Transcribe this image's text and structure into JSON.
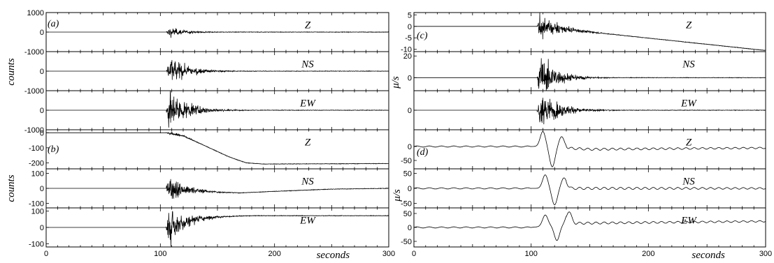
{
  "chart_data": [
    {
      "type": "line",
      "panel": "(a)",
      "ylabel": "counts",
      "x_range": [
        0,
        300
      ],
      "traces": [
        {
          "component": "Z",
          "ylim": [
            -1000,
            1000
          ],
          "ticks": [
            "1000",
            "0",
            "-1000"
          ],
          "onset": 105,
          "peak_amp": 220,
          "decay": 14,
          "trend": []
        },
        {
          "component": "NS",
          "ylim": [
            -1000,
            1000
          ],
          "ticks": [
            "0",
            "-1000"
          ],
          "onset": 105,
          "peak_amp": 620,
          "decay": 16,
          "trend": []
        },
        {
          "component": "EW",
          "ylim": [
            -1000,
            1000
          ],
          "ticks": [
            "0",
            "-1000"
          ],
          "onset": 105,
          "peak_amp": 900,
          "decay": 16,
          "trend": []
        }
      ]
    },
    {
      "type": "line",
      "panel": "(b)",
      "ylabel": "counts",
      "x_range": [
        0,
        300
      ],
      "xlabel": "seconds",
      "xticks": [
        "0",
        "100",
        "200",
        "300"
      ],
      "traces": [
        {
          "component": "Z",
          "ylim": [
            -240,
            20
          ],
          "ticks": [
            "0",
            "-100",
            "-200"
          ],
          "onset": 105,
          "peak_amp": 12,
          "decay": 12,
          "trend": [
            [
              0,
              0
            ],
            [
              105,
              0
            ],
            [
              120,
              -20
            ],
            [
              140,
              -90
            ],
            [
              160,
              -160
            ],
            [
              175,
              -200
            ],
            [
              190,
              -208
            ],
            [
              300,
              -205
            ]
          ]
        },
        {
          "component": "NS",
          "ylim": [
            -130,
            130
          ],
          "ticks": [
            "100",
            "0",
            "-100"
          ],
          "onset": 105,
          "peak_amp": 75,
          "decay": 15,
          "trend": [
            [
              0,
              0
            ],
            [
              105,
              0
            ],
            [
              120,
              -8
            ],
            [
              150,
              -25
            ],
            [
              170,
              -30
            ],
            [
              200,
              -20
            ],
            [
              250,
              -5
            ],
            [
              300,
              0
            ]
          ]
        },
        {
          "component": "EW",
          "ylim": [
            -120,
            120
          ],
          "ticks": [
            "100",
            "0",
            "-100"
          ],
          "onset": 105,
          "peak_amp": 95,
          "decay": 15,
          "trend": [
            [
              0,
              0
            ],
            [
              105,
              0
            ],
            [
              115,
              20
            ],
            [
              130,
              50
            ],
            [
              150,
              65
            ],
            [
              180,
              72
            ],
            [
              300,
              72
            ]
          ]
        }
      ]
    },
    {
      "type": "line",
      "panel": "(c)",
      "ylabel": "μ/s",
      "x_range": [
        0,
        300
      ],
      "traces": [
        {
          "component": "Z",
          "ylim": [
            -11,
            6
          ],
          "ticks": [
            "5",
            "0",
            "-5",
            "-10"
          ],
          "onset": 105,
          "peak_amp": 5,
          "decay": 16,
          "trend": [
            [
              0,
              0
            ],
            [
              105,
              0
            ],
            [
              300,
              -10.5
            ]
          ]
        },
        {
          "component": "NS",
          "ylim": [
            -12,
            24
          ],
          "ticks": [
            "20",
            "0"
          ],
          "onset": 105,
          "peak_amp": 18,
          "decay": 14,
          "trend": []
        },
        {
          "component": "EW",
          "ylim": [
            -25,
            25
          ],
          "ticks": [
            "0"
          ],
          "onset": 105,
          "peak_amp": 20,
          "decay": 16,
          "trend": []
        }
      ]
    },
    {
      "type": "line",
      "panel": "(d)",
      "ylabel": "μ/s",
      "x_range": [
        0,
        300
      ],
      "xlabel": "seconds",
      "xticks": [
        "0",
        "100",
        "200",
        "300"
      ],
      "traces": [
        {
          "component": "Z",
          "ylim": [
            -80,
            60
          ],
          "ticks": [
            "0",
            "-50"
          ],
          "waves": [
            [
              110,
              55
            ],
            [
              118,
              -70
            ],
            [
              126,
              40
            ]
          ],
          "trend": [
            [
              0,
              0
            ],
            [
              105,
              0
            ],
            [
              150,
              -10
            ],
            [
              300,
              -5
            ]
          ],
          "ripple": 4
        },
        {
          "component": "NS",
          "ylim": [
            -65,
            65
          ],
          "ticks": [
            "50",
            "0",
            "-50"
          ],
          "waves": [
            [
              112,
              45
            ],
            [
              120,
              -55
            ],
            [
              128,
              35
            ]
          ],
          "trend": [],
          "ripple": 4
        },
        {
          "component": "EW",
          "ylim": [
            -70,
            70
          ],
          "ticks": [
            "50",
            "0",
            "-50"
          ],
          "waves": [
            [
              112,
              40
            ],
            [
              122,
              -55
            ],
            [
              132,
              45
            ]
          ],
          "trend": [
            [
              0,
              0
            ],
            [
              100,
              0
            ],
            [
              140,
              15
            ],
            [
              300,
              22
            ]
          ],
          "ripple": 4
        }
      ]
    }
  ]
}
